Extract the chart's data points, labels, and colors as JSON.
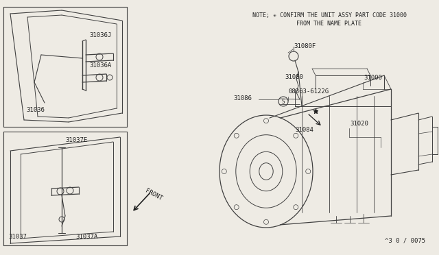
{
  "bg_color": "#eeebe4",
  "line_color": "#404040",
  "text_color": "#202020",
  "note_line1": "NOTE; ✳ CONFIRM THE UNIT ASSY PART CODE 31000",
  "note_line2": "FROM THE NAME PLATE",
  "diagram_id": "^3 0 / 0075",
  "front_label": "FRONT",
  "fs_label": 6.5,
  "fs_note": 6.0
}
